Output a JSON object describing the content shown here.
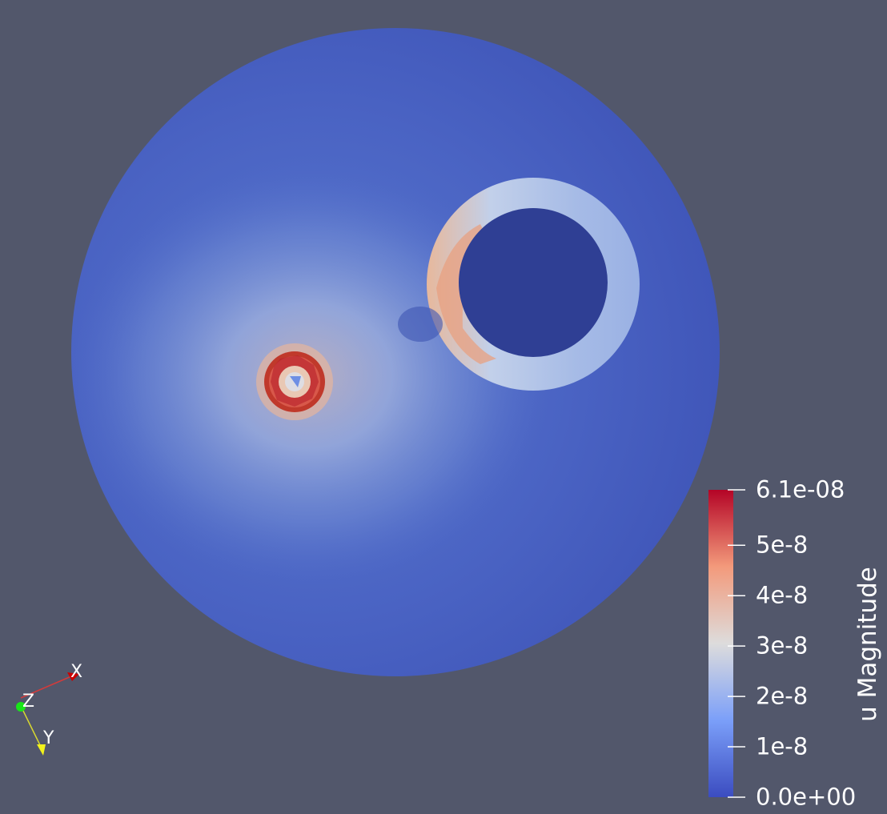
{
  "scene": {
    "background_color": "#52576b",
    "field_colors": {
      "low": "#3b4cc0",
      "mid": "#dddcdc",
      "high": "#b40426"
    }
  },
  "legend": {
    "title": "u Magnitude",
    "range": [
      0,
      6.1e-08
    ],
    "ticks": [
      {
        "value": 6.1e-08,
        "label": "6.1e-08"
      },
      {
        "value": 5e-08,
        "label": "5e-8"
      },
      {
        "value": 4e-08,
        "label": "4e-8"
      },
      {
        "value": 3e-08,
        "label": "3e-8"
      },
      {
        "value": 2e-08,
        "label": "2e-8"
      },
      {
        "value": 1e-08,
        "label": "1e-8"
      },
      {
        "value": 0,
        "label": "0.0e+00"
      }
    ]
  },
  "orientation_axes": {
    "x_label": "X",
    "y_label": "Y",
    "z_label": "Z",
    "x_color": "#ff0000",
    "y_color": "#ffff00",
    "z_color": "#00ff00"
  }
}
